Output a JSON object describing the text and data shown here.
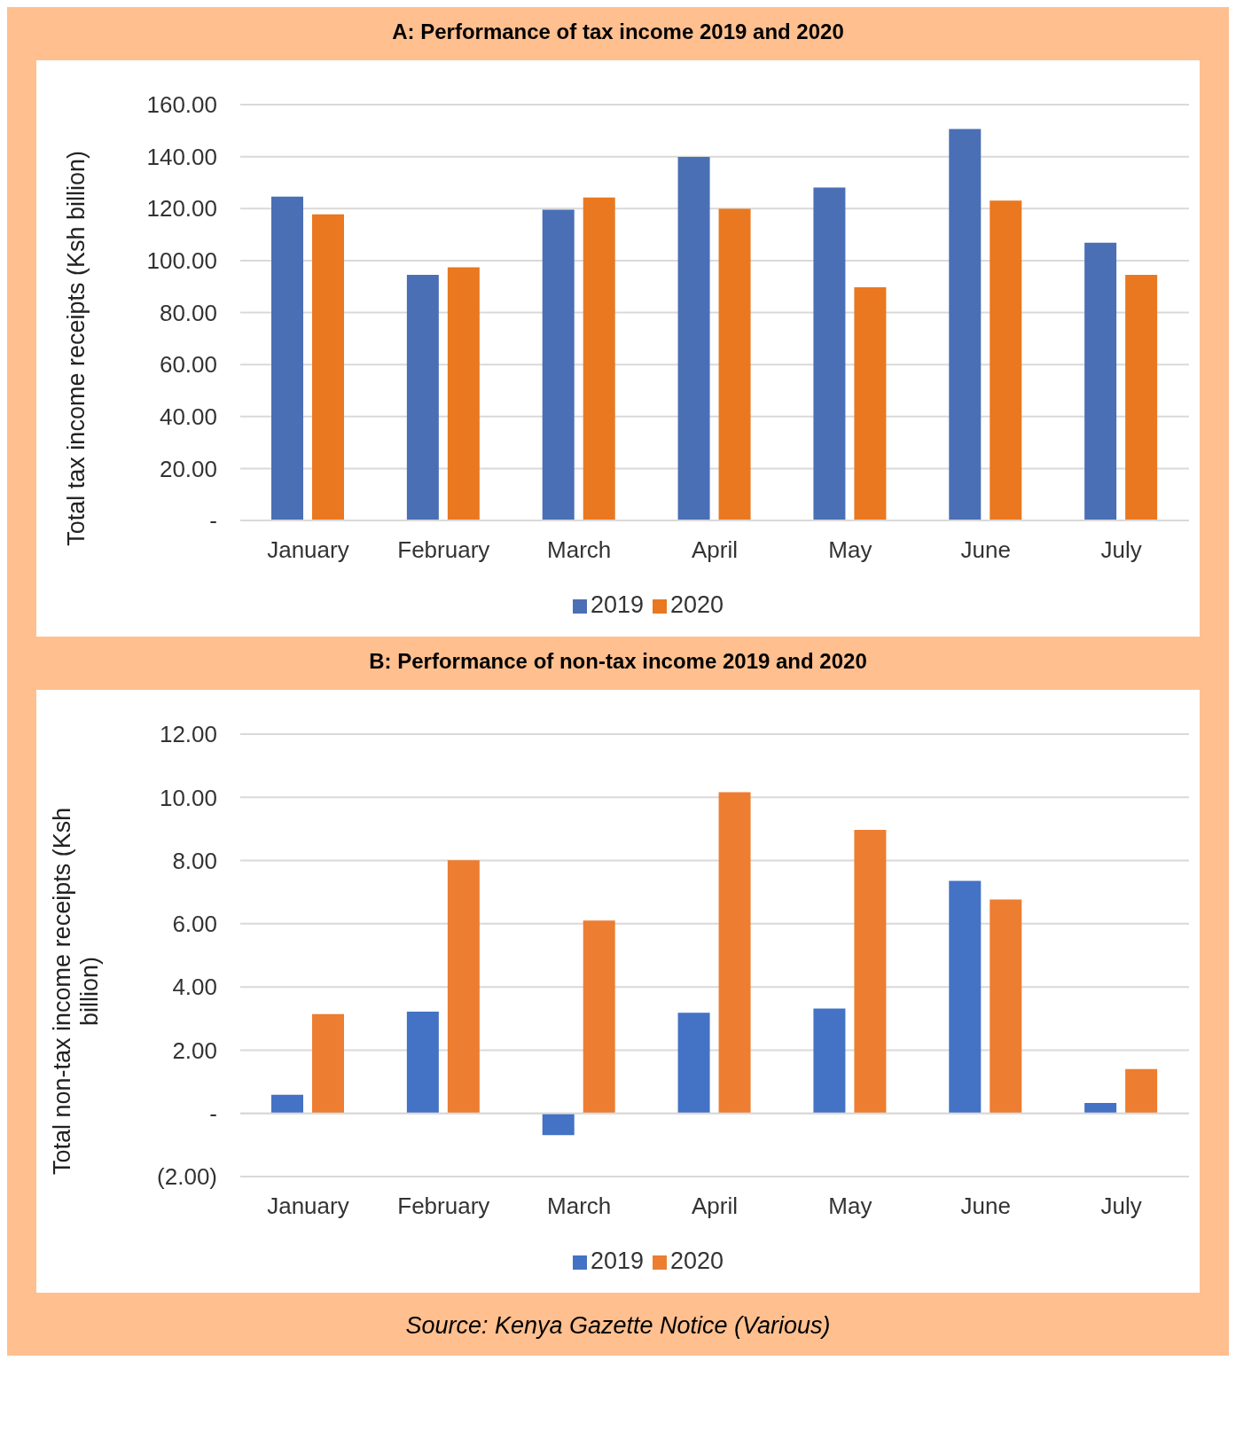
{
  "chart_data": [
    {
      "type": "bar",
      "title": "A: Performance of tax income 2019 and 2020",
      "ylabel": "Total tax income receipts (Ksh billion)",
      "categories": [
        "January",
        "February",
        "March",
        "April",
        "May",
        "June",
        "July"
      ],
      "series": [
        {
          "name": "2019",
          "color": "#4a6fb5",
          "values": [
            124.6,
            94.5,
            119.6,
            139.9,
            128.1,
            150.6,
            106.9
          ]
        },
        {
          "name": "2020",
          "color": "#e97820",
          "values": [
            117.8,
            97.4,
            124.3,
            119.9,
            89.7,
            123.1,
            94.5
          ]
        }
      ],
      "ylim": [
        0,
        160
      ],
      "yticks": [
        {
          "value": 0,
          "label": "-"
        },
        {
          "value": 20,
          "label": "20.00"
        },
        {
          "value": 40,
          "label": "40.00"
        },
        {
          "value": 60,
          "label": "60.00"
        },
        {
          "value": 80,
          "label": "80.00"
        },
        {
          "value": 100,
          "label": "100.00"
        },
        {
          "value": 120,
          "label": "120.00"
        },
        {
          "value": 140,
          "label": "140.00"
        },
        {
          "value": 160,
          "label": "160.00"
        }
      ],
      "grid": "y",
      "legend": "bottom"
    },
    {
      "type": "bar",
      "title": "B: Performance of non-tax income 2019 and 2020",
      "ylabel": "Total non-tax income receipts (Ksh billion)",
      "categories": [
        "January",
        "February",
        "March",
        "April",
        "May",
        "June",
        "July"
      ],
      "series": [
        {
          "name": "2019",
          "color": "#4472c4",
          "values": [
            0.59,
            3.22,
            -0.69,
            3.18,
            3.32,
            7.36,
            0.33
          ]
        },
        {
          "name": "2020",
          "color": "#ed7d31",
          "values": [
            3.14,
            8.01,
            6.1,
            10.16,
            8.97,
            6.77,
            1.4
          ]
        }
      ],
      "ylim": [
        -2,
        12
      ],
      "yticks": [
        {
          "value": -2,
          "label": "(2.00)"
        },
        {
          "value": 0,
          "label": "-"
        },
        {
          "value": 2,
          "label": "2.00"
        },
        {
          "value": 4,
          "label": "4.00"
        },
        {
          "value": 6,
          "label": "6.00"
        },
        {
          "value": 8,
          "label": "8.00"
        },
        {
          "value": 10,
          "label": "10.00"
        },
        {
          "value": 12,
          "label": "12.00"
        }
      ],
      "grid": "y",
      "legend": "bottom",
      "annotations": [
        "Source: Kenya Gazette Notice (Various)"
      ]
    }
  ]
}
